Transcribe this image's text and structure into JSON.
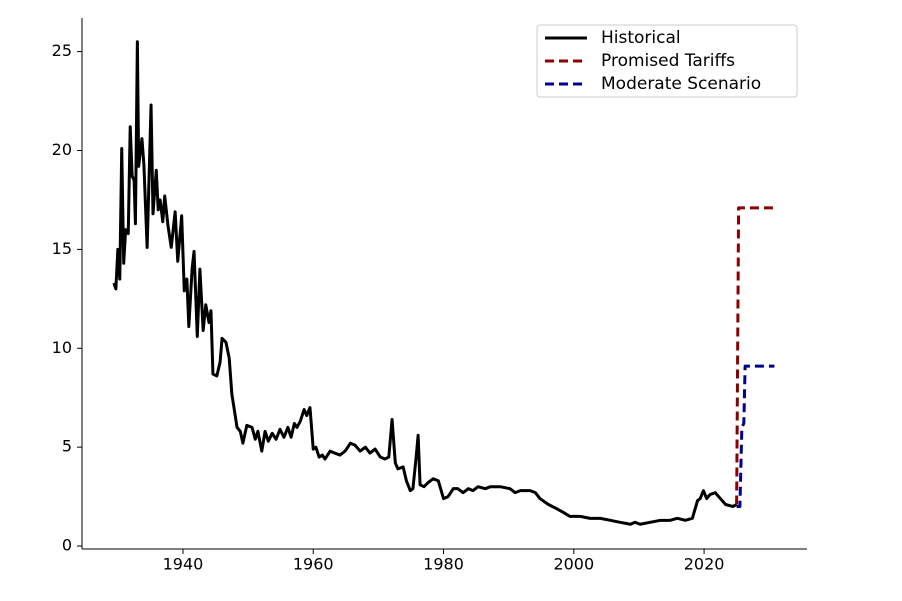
{
  "chart_data": {
    "type": "line",
    "xlim": [
      1924.5,
      2035.8
    ],
    "ylim": [
      -0.15,
      26.7
    ],
    "xticks": [
      1940,
      1960,
      1980,
      2000,
      2020
    ],
    "yticks": [
      0,
      5,
      10,
      15,
      20,
      25
    ],
    "grid": false,
    "legend": "upper right",
    "series": [
      {
        "name": "Historical",
        "color": "#000000",
        "dash": false,
        "x": [
          1929.4,
          1929.7,
          1930.0,
          1930.3,
          1930.6,
          1930.9,
          1931.2,
          1931.6,
          1931.9,
          1932.2,
          1932.5,
          1932.7,
          1933.0,
          1933.2,
          1933.7,
          1934.0,
          1934.5,
          1935.1,
          1935.4,
          1935.9,
          1936.2,
          1936.5,
          1936.9,
          1937.2,
          1937.7,
          1938.2,
          1938.8,
          1939.2,
          1939.8,
          1940.2,
          1940.6,
          1940.9,
          1941.4,
          1941.7,
          1942.2,
          1942.6,
          1943.1,
          1943.5,
          1944.0,
          1944.3,
          1944.6,
          1945.2,
          1945.7,
          1946.0,
          1946.6,
          1947.1,
          1947.5,
          1948.3,
          1948.8,
          1949.2,
          1949.8,
          1950.6,
          1951.1,
          1951.5,
          1952.1,
          1952.6,
          1953.1,
          1953.7,
          1954.3,
          1954.9,
          1955.5,
          1956.1,
          1956.6,
          1957.1,
          1957.5,
          1958.0,
          1958.6,
          1959.0,
          1959.5,
          1960.0,
          1960.4,
          1960.9,
          1961.4,
          1961.8,
          1962.6,
          1963.3,
          1964.1,
          1964.9,
          1965.7,
          1966.4,
          1967.2,
          1968.0,
          1968.7,
          1969.5,
          1970.3,
          1971.0,
          1971.6,
          1972.1,
          1972.6,
          1973.0,
          1973.8,
          1974.3,
          1974.9,
          1975.3,
          1975.8,
          1976.1,
          1976.4,
          1977.0,
          1977.6,
          1978.4,
          1979.2,
          1980.0,
          1980.7,
          1981.5,
          1982.2,
          1983.0,
          1983.8,
          1984.5,
          1985.3,
          1986.4,
          1987.2,
          1988.7,
          1990.2,
          1991.0,
          1991.8,
          1993.3,
          1994.1,
          1994.8,
          1996.1,
          1997.3,
          1998.4,
          1999.4,
          2001.0,
          2002.5,
          2004.1,
          2005.6,
          2007.1,
          2008.7,
          2009.4,
          2010.2,
          2011.7,
          2013.3,
          2014.8,
          2015.9,
          2017.1,
          2018.2,
          2019.0,
          2019.4,
          2019.9,
          2020.4,
          2020.9,
          2021.7,
          2022.5,
          2023.3,
          2024.4,
          2025.0
        ],
        "values": [
          13.3,
          13.0,
          15.0,
          13.5,
          20.1,
          14.3,
          16.0,
          15.8,
          21.2,
          18.7,
          18.5,
          16.3,
          25.5,
          19.2,
          20.6,
          19.3,
          15.1,
          22.3,
          16.8,
          19.0,
          17.0,
          17.5,
          16.4,
          17.7,
          16.2,
          15.1,
          16.9,
          14.4,
          16.7,
          12.9,
          13.5,
          11.1,
          14.0,
          14.9,
          10.6,
          14.0,
          10.9,
          12.2,
          11.3,
          11.9,
          8.7,
          8.6,
          9.3,
          10.5,
          10.3,
          9.5,
          7.7,
          6.0,
          5.8,
          5.2,
          6.1,
          6.0,
          5.4,
          5.8,
          4.8,
          5.8,
          5.3,
          5.7,
          5.4,
          5.9,
          5.5,
          6.0,
          5.5,
          6.2,
          6.0,
          6.3,
          6.9,
          6.6,
          7.0,
          4.9,
          5.0,
          4.5,
          4.6,
          4.4,
          4.8,
          4.7,
          4.6,
          4.8,
          5.2,
          5.1,
          4.8,
          5.0,
          4.7,
          4.9,
          4.5,
          4.4,
          4.5,
          6.4,
          4.2,
          3.9,
          4.0,
          3.3,
          2.8,
          2.9,
          4.5,
          5.6,
          3.1,
          3.0,
          3.2,
          3.4,
          3.3,
          2.4,
          2.5,
          2.9,
          2.9,
          2.7,
          2.9,
          2.8,
          3.0,
          2.9,
          3.0,
          3.0,
          2.9,
          2.7,
          2.8,
          2.8,
          2.7,
          2.4,
          2.1,
          1.9,
          1.7,
          1.5,
          1.5,
          1.4,
          1.4,
          1.3,
          1.2,
          1.1,
          1.2,
          1.1,
          1.2,
          1.3,
          1.3,
          1.4,
          1.3,
          1.4,
          2.3,
          2.4,
          2.8,
          2.4,
          2.6,
          2.7,
          2.4,
          2.1,
          2.0,
          2.1
        ]
      },
      {
        "name": "Promised Tariffs",
        "color": "#8b0000",
        "dash": true,
        "x": [
          2025.0,
          2025.3,
          2030.8
        ],
        "values": [
          2.1,
          17.1,
          17.1
        ]
      },
      {
        "name": "Moderate Scenario",
        "color": "#00008b",
        "dash": true,
        "x": [
          2025.0,
          2025.5,
          2025.8,
          2026.1,
          2026.3,
          2030.8
        ],
        "values": [
          2.0,
          2.0,
          6.0,
          6.2,
          9.1,
          9.1
        ]
      }
    ]
  }
}
